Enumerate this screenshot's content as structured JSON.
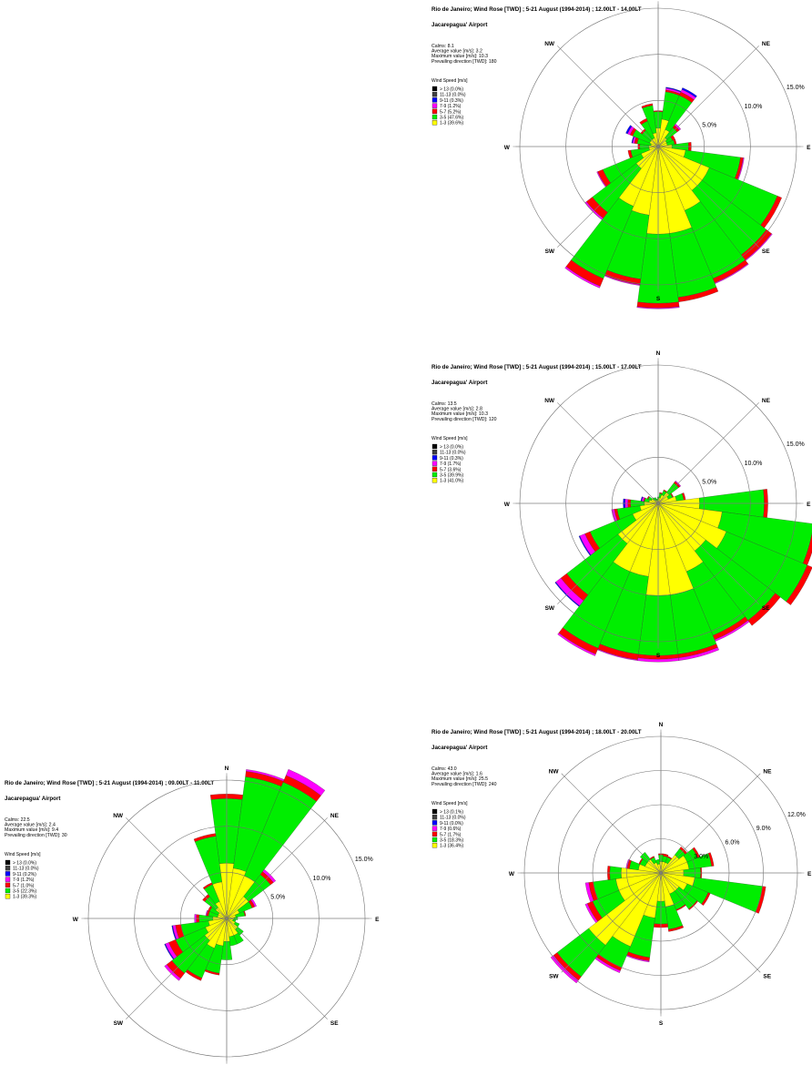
{
  "colors": {
    "bins": [
      "#ffff00",
      "#00ee00",
      "#ff0000",
      "#ff00ff",
      "#0000ff",
      "#404040",
      "#000000"
    ],
    "axis": "#808080",
    "grid": "#707070"
  },
  "directions": [
    "N",
    "NE",
    "E",
    "SE",
    "S",
    "SW",
    "W",
    "NW"
  ],
  "legend_title": "Wind Speed [m/s]",
  "chart_data": [
    {
      "type": "wind_rose",
      "title": "Rio de Janeiro; Wind Rose [TWD] ; 5-21 August (1994-2014) ; 12.00LT - 14.00LT",
      "subtitle": "Jacarepagua' Airport",
      "stats": [
        "Calms:  8.1",
        "Average value [m/s]:  3.2",
        "Maximum value [m/s]:  10.3",
        "Prevailing direction [TWD]:  180"
      ],
      "legend": [
        "> 13 (0.0%)",
        "11-13 (0.0%)",
        "9-11 (0.3%)",
        "7-9 (1.2%)",
        "5-7 (5.2%)",
        "3-5 (47.6%)",
        "1-3 (39.6%)"
      ],
      "rings": [
        5,
        10,
        15
      ],
      "ring_labels": [
        "5.0%",
        "10.0%",
        "15.0%"
      ],
      "sectors": [
        [
          2.0,
          1.8,
          0.1,
          0,
          0,
          0,
          0
        ],
        [
          3.0,
          3.0,
          0.2,
          0.2,
          0.1,
          0,
          0
        ],
        [
          2.0,
          4.0,
          0.4,
          0.3,
          0.2,
          0,
          0
        ],
        [
          1.2,
          1.4,
          0.3,
          0.2,
          0,
          0,
          0
        ],
        [
          1.0,
          0.7,
          0.3,
          0,
          0,
          0,
          0
        ],
        [
          1.0,
          0.8,
          0.2,
          0,
          0,
          0,
          0
        ],
        [
          1.5,
          1.8,
          0.3,
          0,
          0,
          0,
          0
        ],
        [
          3.0,
          6.0,
          0.3,
          0.1,
          0,
          0,
          0
        ],
        [
          6.0,
          8.0,
          0.5,
          0,
          0,
          0,
          0
        ],
        [
          6.0,
          8.8,
          0.7,
          0.1,
          0,
          0,
          0
        ],
        [
          7.5,
          8.0,
          0.5,
          0.1,
          0,
          0,
          0
        ],
        [
          9.5,
          7.0,
          0.5,
          0,
          0,
          0,
          0
        ],
        [
          9.5,
          7.5,
          0.5,
          0.1,
          0,
          0,
          0
        ],
        [
          7.5,
          7.0,
          0.6,
          0.1,
          0,
          0,
          0
        ],
        [
          7.0,
          8.5,
          0.9,
          0.2,
          0,
          0,
          0
        ],
        [
          3.0,
          6.0,
          0.8,
          0.2,
          0,
          0,
          0
        ],
        [
          2.0,
          4.5,
          0.6,
          0.1,
          0,
          0,
          0
        ],
        [
          1.0,
          2.0,
          0.3,
          0,
          0,
          0,
          0
        ],
        [
          1.0,
          1.0,
          0.2,
          0,
          0,
          0,
          0
        ],
        [
          0.8,
          1.5,
          0.3,
          0.2,
          0.1,
          0,
          0
        ],
        [
          1.0,
          2.0,
          0.3,
          0.3,
          0.2,
          0,
          0
        ],
        [
          1.0,
          1.2,
          0.2,
          0,
          0,
          0,
          0
        ],
        [
          1.0,
          2.0,
          0.3,
          0,
          0,
          0,
          0
        ],
        [
          1.5,
          3.0,
          0.2,
          0,
          0,
          0,
          0
        ]
      ]
    },
    {
      "type": "wind_rose",
      "title": "Rio de Janeiro; Wind Rose [TWD] ; 5-21 August (1994-2014) ; 15.00LT - 17.00LT",
      "subtitle": "Jacarepagua' Airport",
      "stats": [
        "Calms:  13.5",
        "Average value [m/s]:  2.8",
        "Maximum value [m/s]:  10.3",
        "Prevailing direction [TWD]:  120"
      ],
      "legend": [
        "> 13 (0.0%)",
        "11-13 (0.0%)",
        "9-11 (0.3%)",
        "7-9 (1.7%)",
        "5-7 (3.6%)",
        "3-5 (39.9%)",
        "1-3 (41.0%)"
      ],
      "rings": [
        5,
        10,
        15
      ],
      "ring_labels": [
        "5.0%",
        "10.0%",
        "15.0%"
      ],
      "sectors": [
        [
          0.4,
          0.3,
          0,
          0,
          0,
          0,
          0
        ],
        [
          0.6,
          0.5,
          0.1,
          0,
          0,
          0,
          0
        ],
        [
          1.0,
          0.5,
          0.1,
          0,
          0,
          0,
          0
        ],
        [
          1.5,
          1.3,
          0.2,
          0.1,
          0,
          0,
          0
        ],
        [
          1.2,
          0.5,
          0.1,
          0,
          0,
          0,
          0
        ],
        [
          2.0,
          0.8,
          0.2,
          0,
          0,
          0,
          0
        ],
        [
          4.5,
          7.0,
          0.4,
          0,
          0,
          0,
          0
        ],
        [
          7.0,
          10.0,
          0.5,
          0,
          0,
          0,
          0
        ],
        [
          8.0,
          9.5,
          0.6,
          0,
          0,
          0,
          0
        ],
        [
          6.5,
          9.5,
          0.7,
          0,
          0,
          0,
          0
        ],
        [
          8.0,
          7.5,
          0.5,
          0.2,
          0,
          0,
          0
        ],
        [
          10.0,
          6.5,
          0.4,
          0.3,
          0,
          0,
          0
        ],
        [
          10.0,
          6.5,
          0.4,
          0.3,
          0,
          0,
          0
        ],
        [
          8.0,
          8.5,
          0.6,
          0.1,
          0,
          0,
          0
        ],
        [
          8.0,
          9.0,
          0.7,
          0.2,
          0,
          0,
          0
        ],
        [
          5.5,
          7.0,
          0.8,
          0.7,
          0.1,
          0,
          0
        ],
        [
          3.0,
          5.0,
          0.6,
          0.6,
          0.1,
          0,
          0
        ],
        [
          2.0,
          2.5,
          0.3,
          0.3,
          0,
          0,
          0
        ],
        [
          1.5,
          1.5,
          0.3,
          0.3,
          0.2,
          0,
          0
        ],
        [
          1.0,
          0.5,
          0.1,
          0.2,
          0.1,
          0,
          0
        ],
        [
          0.8,
          0.4,
          0.1,
          0,
          0,
          0,
          0
        ],
        [
          0.5,
          0.3,
          0,
          0,
          0,
          0,
          0
        ],
        [
          0.4,
          0.3,
          0,
          0,
          0,
          0,
          0
        ],
        [
          0.3,
          0.2,
          0,
          0,
          0,
          0,
          0
        ]
      ]
    },
    {
      "type": "wind_rose",
      "title": "Rio de Janeiro; Wind Rose [TWD] ; 5-21 August (1994-2014) ; 09.00LT - 11.00LT",
      "subtitle": "Jacarepagua' Airport",
      "stats": [
        "Calms:  22.5",
        "Average value [m/s]:  2.4",
        "Maximum value [m/s]:  9.4",
        "Prevailing direction [TWD]:  30"
      ],
      "legend": [
        "> 13 (0.0%)",
        "11-13 (0.0%)",
        "9-11 (0.2%)",
        "7-9 (1.2%)",
        "5-7 (1.0%)",
        "3-5 (22.3%)",
        "1-3 (39.3%)"
      ],
      "rings": [
        5,
        10,
        15
      ],
      "ring_labels": [
        "5.0%",
        "10.0%",
        "15.0%"
      ],
      "sectors": [
        [
          6.0,
          7.0,
          0.5,
          0,
          0,
          0,
          0
        ],
        [
          5.5,
          10.0,
          0.6,
          0.2,
          0,
          0,
          0
        ],
        [
          5.0,
          11.0,
          0.8,
          0.7,
          0,
          0,
          0
        ],
        [
          3.0,
          3.0,
          0.4,
          0.3,
          0,
          0,
          0
        ],
        [
          1.5,
          1.5,
          0.3,
          0.2,
          0,
          0,
          0
        ],
        [
          1.0,
          1.0,
          0.1,
          0,
          0,
          0,
          0
        ],
        [
          0.8,
          0.4,
          0,
          0,
          0,
          0,
          0
        ],
        [
          0.7,
          0.3,
          0,
          0,
          0,
          0,
          0
        ],
        [
          1.0,
          0.5,
          0,
          0,
          0,
          0,
          0
        ],
        [
          1.5,
          0.8,
          0,
          0,
          0,
          0,
          0
        ],
        [
          2.0,
          1.0,
          0,
          0,
          0,
          0,
          0
        ],
        [
          2.0,
          1.0,
          0,
          0,
          0,
          0,
          0
        ],
        [
          2.5,
          2.0,
          0,
          0,
          0,
          0,
          0
        ],
        [
          3.0,
          3.0,
          0.2,
          0,
          0,
          0,
          0
        ],
        [
          3.5,
          3.5,
          0.3,
          0,
          0,
          0,
          0
        ],
        [
          3.0,
          4.5,
          0.7,
          0.3,
          0,
          0,
          0
        ],
        [
          2.5,
          3.5,
          0.8,
          0.4,
          0.1,
          0,
          0
        ],
        [
          2.0,
          3.0,
          0.6,
          0.3,
          0.1,
          0,
          0
        ],
        [
          1.5,
          1.5,
          0.3,
          0.2,
          0,
          0,
          0
        ],
        [
          1.0,
          1.0,
          0.2,
          0.1,
          0,
          0,
          0
        ],
        [
          1.0,
          1.0,
          0.2,
          0,
          0,
          0,
          0
        ],
        [
          1.5,
          1.5,
          0.3,
          0,
          0,
          0,
          0
        ],
        [
          2.0,
          2.0,
          0.2,
          0,
          0,
          0,
          0
        ],
        [
          4.0,
          5.0,
          0.3,
          0,
          0,
          0,
          0
        ]
      ]
    },
    {
      "type": "wind_rose",
      "title": "Rio de Janeiro; Wind Rose [TWD] ; 5-21 August (1994-2014) ; 18.00LT - 20.00LT",
      "subtitle": "Jacarepagua' Airport",
      "stats": [
        "Calms:  43.0",
        "Average value [m/s]:  1.6",
        "Maximum value [m/s]:  25.5",
        "Prevailing direction [TWD]:  240"
      ],
      "legend": [
        "> 13 (0.1%)",
        "11-13 (0.0%)",
        "9-11 (0.0%)",
        "7-9 (0.6%)",
        "5-7 (1.7%)",
        "3-5 (18.3%)",
        "1-3 (36.4%)"
      ],
      "rings": [
        3,
        6,
        9,
        12
      ],
      "ring_labels": [
        "3.0%",
        "6.0%",
        "9.0%",
        "12.0%"
      ],
      "sectors": [
        [
          1.0,
          0.6,
          0.1,
          0,
          0,
          0,
          0
        ],
        [
          1.0,
          0.5,
          0.2,
          0,
          0,
          0,
          0
        ],
        [
          1.0,
          0.5,
          0.1,
          0,
          0,
          0,
          0
        ],
        [
          2.0,
          0.7,
          0.2,
          0,
          0,
          0,
          0
        ],
        [
          2.5,
          1.0,
          0.2,
          0,
          0,
          0,
          0
        ],
        [
          2.5,
          2.0,
          0.2,
          0,
          0,
          0,
          0
        ],
        [
          2.0,
          1.5,
          0.1,
          0,
          0,
          0,
          0
        ],
        [
          3.0,
          6.0,
          0.3,
          0,
          0,
          0,
          0
        ],
        [
          2.5,
          2.0,
          0.2,
          0,
          0,
          0,
          0
        ],
        [
          2.0,
          2.0,
          0.1,
          0,
          0,
          0,
          0
        ],
        [
          2.0,
          1.5,
          0.1,
          0,
          0,
          0,
          0
        ],
        [
          3.0,
          2.0,
          0.2,
          0,
          0,
          0,
          0
        ],
        [
          2.5,
          2.0,
          0.3,
          0,
          0,
          0,
          0
        ],
        [
          4.0,
          3.5,
          0.3,
          0.1,
          0,
          0,
          0
        ],
        [
          7.0,
          2.0,
          0.3,
          0.2,
          0,
          0,
          0
        ],
        [
          8.0,
          3.5,
          0.4,
          0.3,
          0,
          0,
          0
        ],
        [
          4.0,
          2.5,
          0.5,
          0.2,
          0,
          0,
          0
        ],
        [
          4.0,
          2.0,
          0.4,
          0.3,
          0,
          0,
          0
        ],
        [
          3.5,
          1.0,
          0.2,
          0,
          0,
          0,
          0
        ],
        [
          2.0,
          0.8,
          0.2,
          0.1,
          0,
          0,
          0
        ],
        [
          1.5,
          0.5,
          0.1,
          0,
          0,
          0,
          0
        ],
        [
          1.5,
          0.8,
          0,
          0,
          0,
          0,
          0
        ],
        [
          1.0,
          0.5,
          0.1,
          0,
          0,
          0,
          0
        ],
        [
          0.8,
          0.4,
          0,
          0,
          0,
          0,
          0
        ]
      ]
    }
  ]
}
